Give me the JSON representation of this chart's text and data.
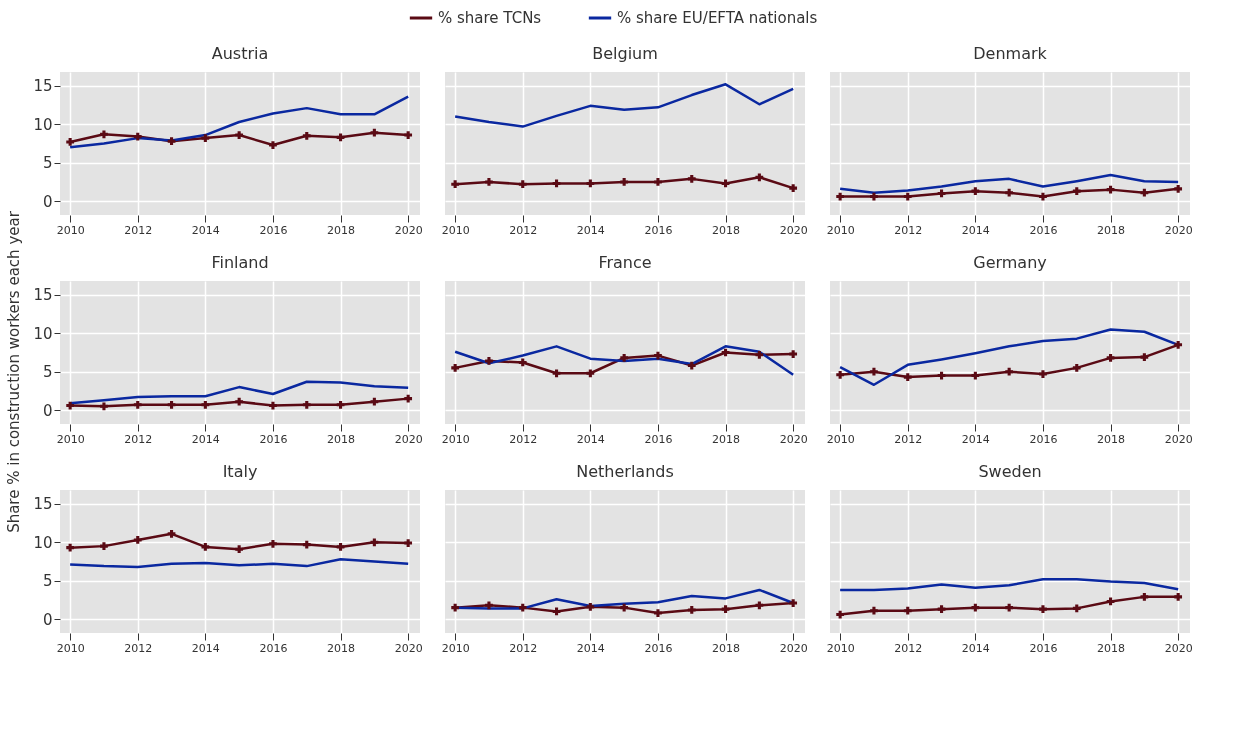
{
  "chart_data": [
    {
      "type": "line",
      "title": "Austria",
      "x": [
        2010,
        2011,
        2012,
        2013,
        2014,
        2015,
        2016,
        2017,
        2018,
        2019,
        2020
      ],
      "xlim": [
        2009.7,
        2020.35
      ],
      "xticks": [
        2010,
        2012,
        2014,
        2016,
        2018,
        2020
      ],
      "ylim": [
        -1.8,
        16.8
      ],
      "yticks": [
        0,
        5,
        10,
        15
      ],
      "grid": true,
      "legend": "top",
      "series": [
        {
          "name": "% share TCNs",
          "color": "#5a0a14",
          "marker": "cross",
          "values": [
            7.7,
            8.7,
            8.4,
            7.8,
            8.2,
            8.6,
            7.3,
            8.5,
            8.3,
            8.9,
            8.6
          ]
        },
        {
          "name": "% share EU/EFTA nationals",
          "color": "#0a28a0",
          "values": [
            7.0,
            7.5,
            8.2,
            7.9,
            8.6,
            10.3,
            11.4,
            12.1,
            11.3,
            11.3,
            13.6
          ]
        }
      ]
    },
    {
      "type": "line",
      "title": "Belgium",
      "x": [
        2010,
        2011,
        2012,
        2013,
        2014,
        2015,
        2016,
        2017,
        2018,
        2019,
        2020
      ],
      "xlim": [
        2009.7,
        2020.35
      ],
      "xticks": [
        2010,
        2012,
        2014,
        2016,
        2018,
        2020
      ],
      "ylim": [
        -1.8,
        16.8
      ],
      "yticks": [
        0,
        5,
        10,
        15
      ],
      "grid": true,
      "tick_labels": "x",
      "series": [
        {
          "name": "% share TCNs",
          "color": "#5a0a14",
          "marker": "cross",
          "values": [
            2.2,
            2.5,
            2.2,
            2.3,
            2.3,
            2.5,
            2.5,
            2.9,
            2.3,
            3.1,
            1.7
          ]
        },
        {
          "name": "% share EU/EFTA nationals",
          "color": "#0a28a0",
          "values": [
            11.0,
            10.3,
            9.7,
            11.1,
            12.4,
            11.9,
            12.2,
            13.8,
            15.2,
            12.6,
            14.6
          ]
        }
      ]
    },
    {
      "type": "line",
      "title": "Denmark",
      "x": [
        2010,
        2011,
        2012,
        2013,
        2014,
        2015,
        2016,
        2017,
        2018,
        2019,
        2020
      ],
      "xlim": [
        2009.7,
        2020.35
      ],
      "xticks": [
        2010,
        2012,
        2014,
        2016,
        2018,
        2020
      ],
      "ylim": [
        -1.8,
        16.8
      ],
      "yticks": [
        0,
        5,
        10,
        15
      ],
      "grid": true,
      "tick_labels": "x",
      "series": [
        {
          "name": "% share TCNs",
          "color": "#5a0a14",
          "marker": "cross",
          "values": [
            0.6,
            0.6,
            0.6,
            1.0,
            1.3,
            1.1,
            0.6,
            1.3,
            1.5,
            1.1,
            1.6
          ]
        },
        {
          "name": "% share EU/EFTA nationals",
          "color": "#0a28a0",
          "values": [
            1.6,
            1.1,
            1.4,
            1.9,
            2.6,
            2.9,
            1.9,
            2.6,
            3.4,
            2.6,
            2.5
          ]
        }
      ]
    },
    {
      "type": "line",
      "title": "Finland",
      "ylabel": "Share % in construction workers each year",
      "x": [
        2010,
        2011,
        2012,
        2013,
        2014,
        2015,
        2016,
        2017,
        2018,
        2019,
        2020
      ],
      "xlim": [
        2009.7,
        2020.35
      ],
      "xticks": [
        2010,
        2012,
        2014,
        2016,
        2018,
        2020
      ],
      "ylim": [
        -1.8,
        16.8
      ],
      "yticks": [
        0,
        5,
        10,
        15
      ],
      "grid": true,
      "series": [
        {
          "name": "% share TCNs",
          "color": "#5a0a14",
          "marker": "cross",
          "values": [
            0.6,
            0.5,
            0.7,
            0.7,
            0.7,
            1.1,
            0.6,
            0.7,
            0.7,
            1.1,
            1.5
          ]
        },
        {
          "name": "% share EU/EFTA nationals",
          "color": "#0a28a0",
          "values": [
            0.9,
            1.3,
            1.7,
            1.8,
            1.8,
            3.0,
            2.1,
            3.7,
            3.6,
            3.1,
            2.9
          ]
        }
      ]
    },
    {
      "type": "line",
      "title": "France",
      "x": [
        2010,
        2011,
        2012,
        2013,
        2014,
        2015,
        2016,
        2017,
        2018,
        2019,
        2020
      ],
      "xlim": [
        2009.7,
        2020.35
      ],
      "xticks": [
        2010,
        2012,
        2014,
        2016,
        2018,
        2020
      ],
      "ylim": [
        -1.8,
        16.8
      ],
      "yticks": [
        0,
        5,
        10,
        15
      ],
      "grid": true,
      "tick_labels": "x",
      "series": [
        {
          "name": "% share TCNs",
          "color": "#5a0a14",
          "marker": "cross",
          "values": [
            5.5,
            6.4,
            6.2,
            4.8,
            4.8,
            6.8,
            7.1,
            5.8,
            7.5,
            7.2,
            7.3
          ]
        },
        {
          "name": "% share EU/EFTA nationals",
          "color": "#0a28a0",
          "values": [
            7.6,
            6.1,
            7.1,
            8.3,
            6.7,
            6.4,
            6.7,
            6.0,
            8.3,
            7.6,
            4.6
          ]
        }
      ]
    },
    {
      "type": "line",
      "title": "Germany",
      "x": [
        2010,
        2011,
        2012,
        2013,
        2014,
        2015,
        2016,
        2017,
        2018,
        2019,
        2020
      ],
      "xlim": [
        2009.7,
        2020.35
      ],
      "xticks": [
        2010,
        2012,
        2014,
        2016,
        2018,
        2020
      ],
      "ylim": [
        -1.8,
        16.8
      ],
      "yticks": [
        0,
        5,
        10,
        15
      ],
      "grid": true,
      "tick_labels": "x",
      "series": [
        {
          "name": "% share TCNs",
          "color": "#5a0a14",
          "marker": "cross",
          "values": [
            4.6,
            5.0,
            4.3,
            4.5,
            4.5,
            5.0,
            4.7,
            5.5,
            6.8,
            6.9,
            8.5
          ]
        },
        {
          "name": "% share EU/EFTA nationals",
          "color": "#0a28a0",
          "values": [
            5.6,
            3.3,
            5.9,
            6.6,
            7.4,
            8.3,
            9.0,
            9.3,
            10.5,
            10.2,
            8.5
          ]
        }
      ]
    },
    {
      "type": "line",
      "title": "Italy",
      "x": [
        2010,
        2011,
        2012,
        2013,
        2014,
        2015,
        2016,
        2017,
        2018,
        2019,
        2020
      ],
      "xlim": [
        2009.7,
        2020.35
      ],
      "xticks": [
        2010,
        2012,
        2014,
        2016,
        2018,
        2020
      ],
      "ylim": [
        -1.8,
        16.8
      ],
      "yticks": [
        0,
        5,
        10,
        15
      ],
      "grid": true,
      "series": [
        {
          "name": "% share TCNs",
          "color": "#5a0a14",
          "marker": "cross",
          "values": [
            9.3,
            9.5,
            10.3,
            11.1,
            9.4,
            9.1,
            9.8,
            9.7,
            9.4,
            10.0,
            9.9
          ]
        },
        {
          "name": "% share EU/EFTA nationals",
          "color": "#0a28a0",
          "values": [
            7.1,
            6.9,
            6.8,
            7.2,
            7.3,
            7.0,
            7.2,
            6.9,
            7.8,
            7.5,
            7.2
          ]
        }
      ]
    },
    {
      "type": "line",
      "title": "Netherlands",
      "x": [
        2010,
        2011,
        2012,
        2013,
        2014,
        2015,
        2016,
        2017,
        2018,
        2019,
        2020
      ],
      "xlim": [
        2009.7,
        2020.35
      ],
      "xticks": [
        2010,
        2012,
        2014,
        2016,
        2018,
        2020
      ],
      "ylim": [
        -1.8,
        16.8
      ],
      "yticks": [
        0,
        5,
        10,
        15
      ],
      "grid": true,
      "tick_labels": "x",
      "series": [
        {
          "name": "% share TCNs",
          "color": "#5a0a14",
          "marker": "cross",
          "values": [
            1.5,
            1.8,
            1.5,
            1.0,
            1.6,
            1.5,
            0.8,
            1.2,
            1.3,
            1.8,
            2.1
          ]
        },
        {
          "name": "% share EU/EFTA nationals",
          "color": "#0a28a0",
          "values": [
            1.5,
            1.4,
            1.4,
            2.6,
            1.7,
            2.0,
            2.2,
            3.0,
            2.7,
            3.8,
            2.1
          ]
        }
      ]
    },
    {
      "type": "line",
      "title": "Sweden",
      "x": [
        2010,
        2011,
        2012,
        2013,
        2014,
        2015,
        2016,
        2017,
        2018,
        2019,
        2020
      ],
      "xlim": [
        2009.7,
        2020.35
      ],
      "xticks": [
        2010,
        2012,
        2014,
        2016,
        2018,
        2020
      ],
      "ylim": [
        -1.8,
        16.8
      ],
      "yticks": [
        0,
        5,
        10,
        15
      ],
      "grid": true,
      "tick_labels": "x",
      "series": [
        {
          "name": "% share TCNs",
          "color": "#5a0a14",
          "marker": "cross",
          "values": [
            0.6,
            1.1,
            1.1,
            1.3,
            1.5,
            1.5,
            1.3,
            1.4,
            2.3,
            2.9,
            2.9
          ]
        },
        {
          "name": "% share EU/EFTA nationals",
          "color": "#0a28a0",
          "values": [
            3.8,
            3.8,
            4.0,
            4.5,
            4.1,
            4.4,
            5.2,
            5.2,
            4.9,
            4.7,
            3.9
          ]
        }
      ]
    }
  ]
}
